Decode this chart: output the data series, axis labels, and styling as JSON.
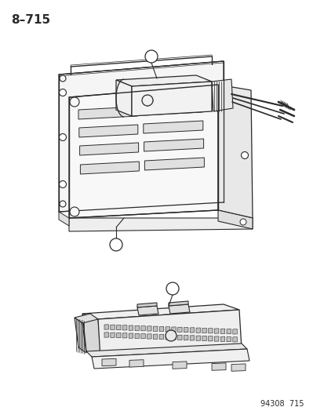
{
  "page_label": "8–715",
  "footer_label": "94308  715",
  "bg_color": "#ffffff",
  "ink_color": "#2a2a2a",
  "title_fontsize": 11,
  "footer_fontsize": 7,
  "callout_fontsize": 8
}
